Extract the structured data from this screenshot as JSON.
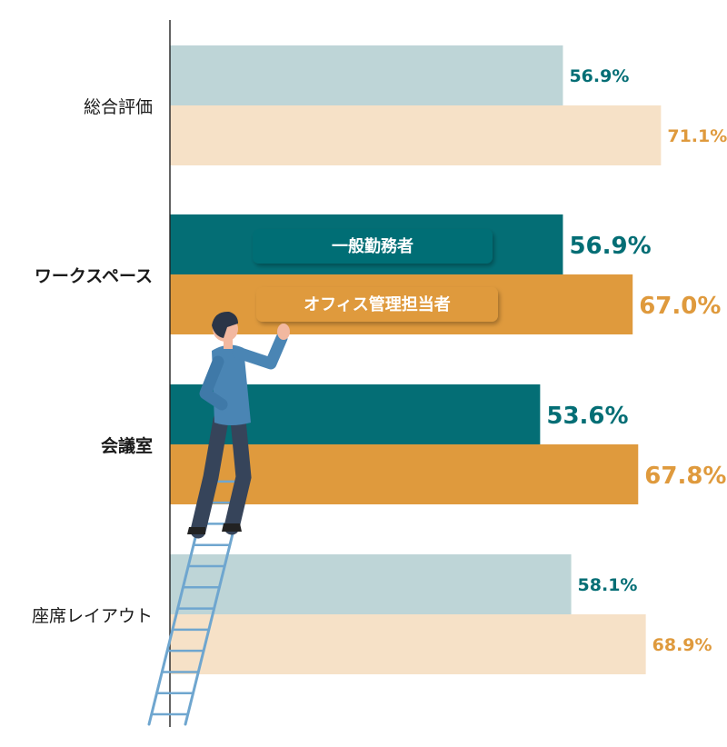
{
  "chart_data": {
    "type": "bar",
    "orientation": "horizontal",
    "categories": [
      "総合評価",
      "ワークスペース",
      "会議室",
      "座席レイアウト"
    ],
    "highlighted_categories": [
      "ワークスペース",
      "会議室"
    ],
    "series": [
      {
        "name": "一般勤務者",
        "values": [
          56.9,
          56.9,
          53.6,
          58.1
        ],
        "labels": [
          "56.9%",
          "56.9%",
          "53.6%",
          "58.1%"
        ],
        "color": "#046e75",
        "muted_color": "#bed5d7"
      },
      {
        "name": "オフィス管理担当者",
        "values": [
          71.1,
          67.0,
          67.8,
          68.9
        ],
        "labels": [
          "71.1%",
          "67.0%",
          "67.8%",
          "68.9%"
        ],
        "color": "#df9a3d",
        "muted_color": "#f6e1c7"
      }
    ],
    "xlim": [
      0,
      100
    ],
    "grid": false,
    "legend": "inside bars of ワークスペース",
    "illustration": "person-climbing-ladder"
  }
}
